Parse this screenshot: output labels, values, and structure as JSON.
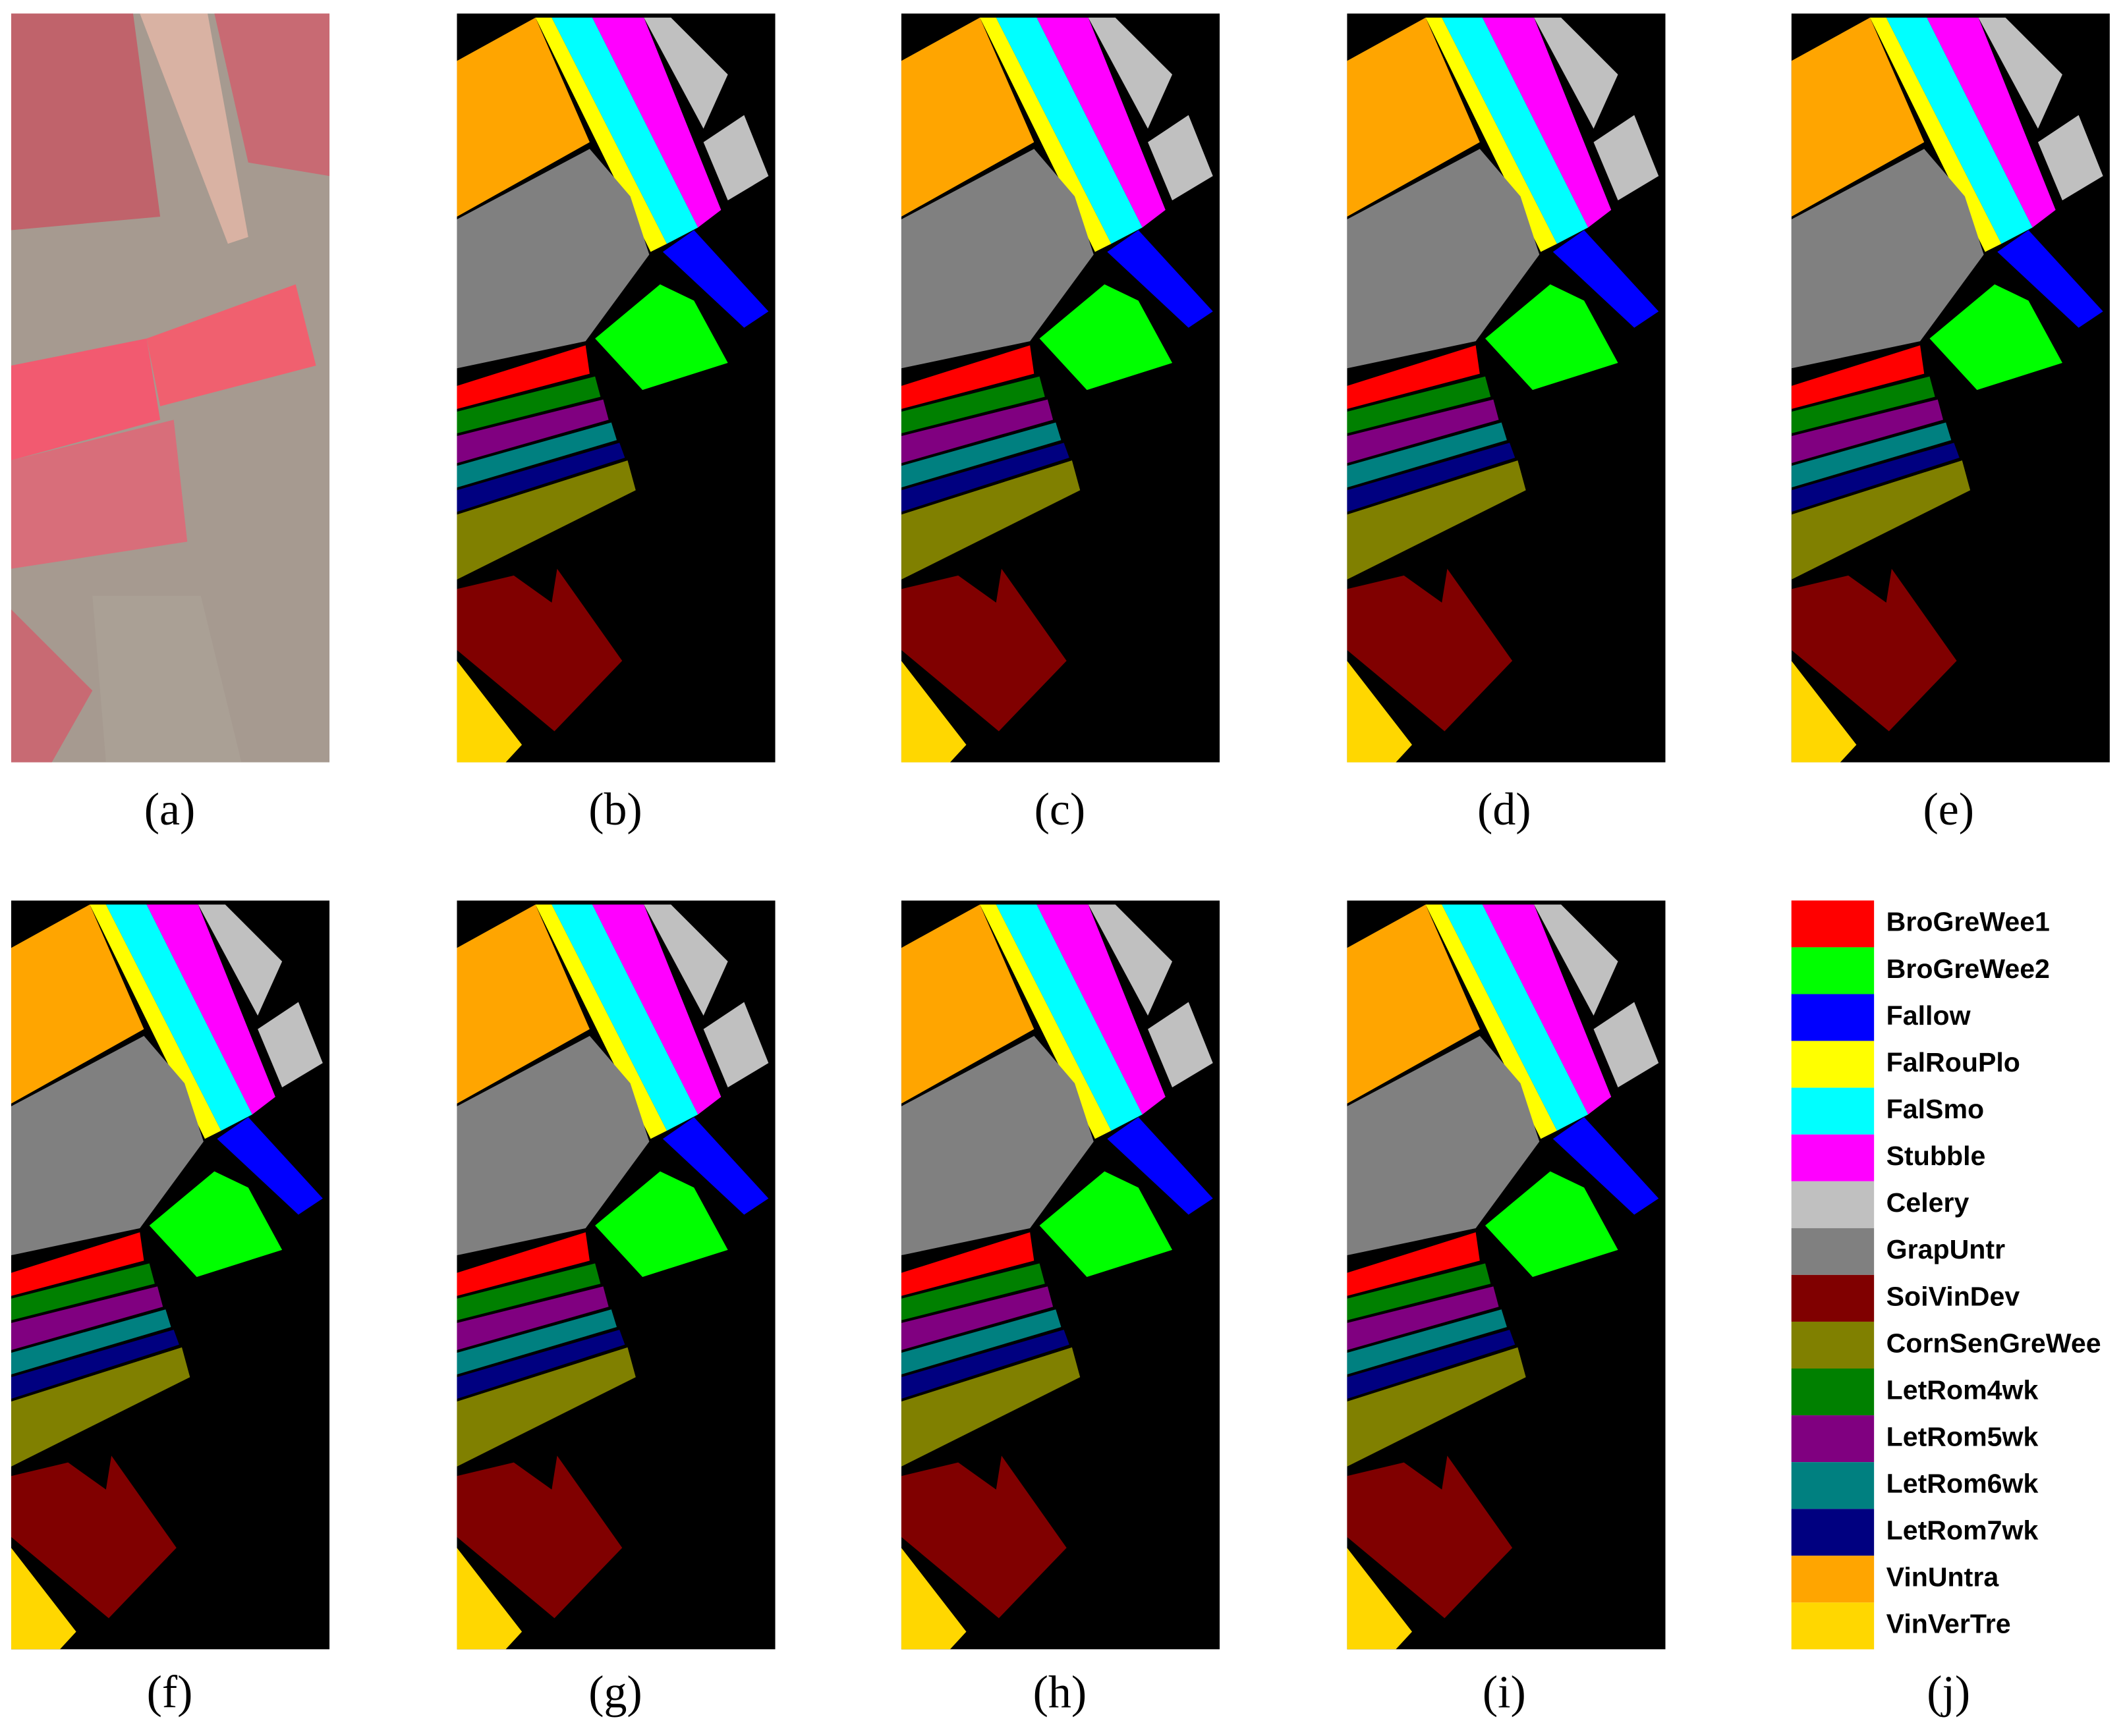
{
  "captions": [
    "(a)",
    "(b)",
    "(c)",
    "(d)",
    "(e)",
    "(f)",
    "(g)",
    "(h)",
    "(i)",
    "(j)"
  ],
  "legend": [
    {
      "name": "BroGreWee1",
      "color": "#ff0000"
    },
    {
      "name": "BroGreWee2",
      "color": "#00ff00"
    },
    {
      "name": "Fallow",
      "color": "#0000ff"
    },
    {
      "name": "FalRouPlo",
      "color": "#ffff00"
    },
    {
      "name": "FalSmo",
      "color": "#00ffff"
    },
    {
      "name": "Stubble",
      "color": "#ff00ff"
    },
    {
      "name": "Celery",
      "color": "#c0c0c0"
    },
    {
      "name": "GrapUntr",
      "color": "#808080"
    },
    {
      "name": "SoiVinDev",
      "color": "#800000"
    },
    {
      "name": "CornSenGreWee",
      "color": "#808000"
    },
    {
      "name": "LetRom4wk",
      "color": "#008000"
    },
    {
      "name": "LetRom5wk",
      "color": "#800080"
    },
    {
      "name": "LetRom6wk",
      "color": "#008080"
    },
    {
      "name": "LetRom7wk",
      "color": "#000080"
    },
    {
      "name": "VinUntra",
      "color": "#ffa500"
    },
    {
      "name": "VinVerTre",
      "color": "#ffd700"
    }
  ]
}
